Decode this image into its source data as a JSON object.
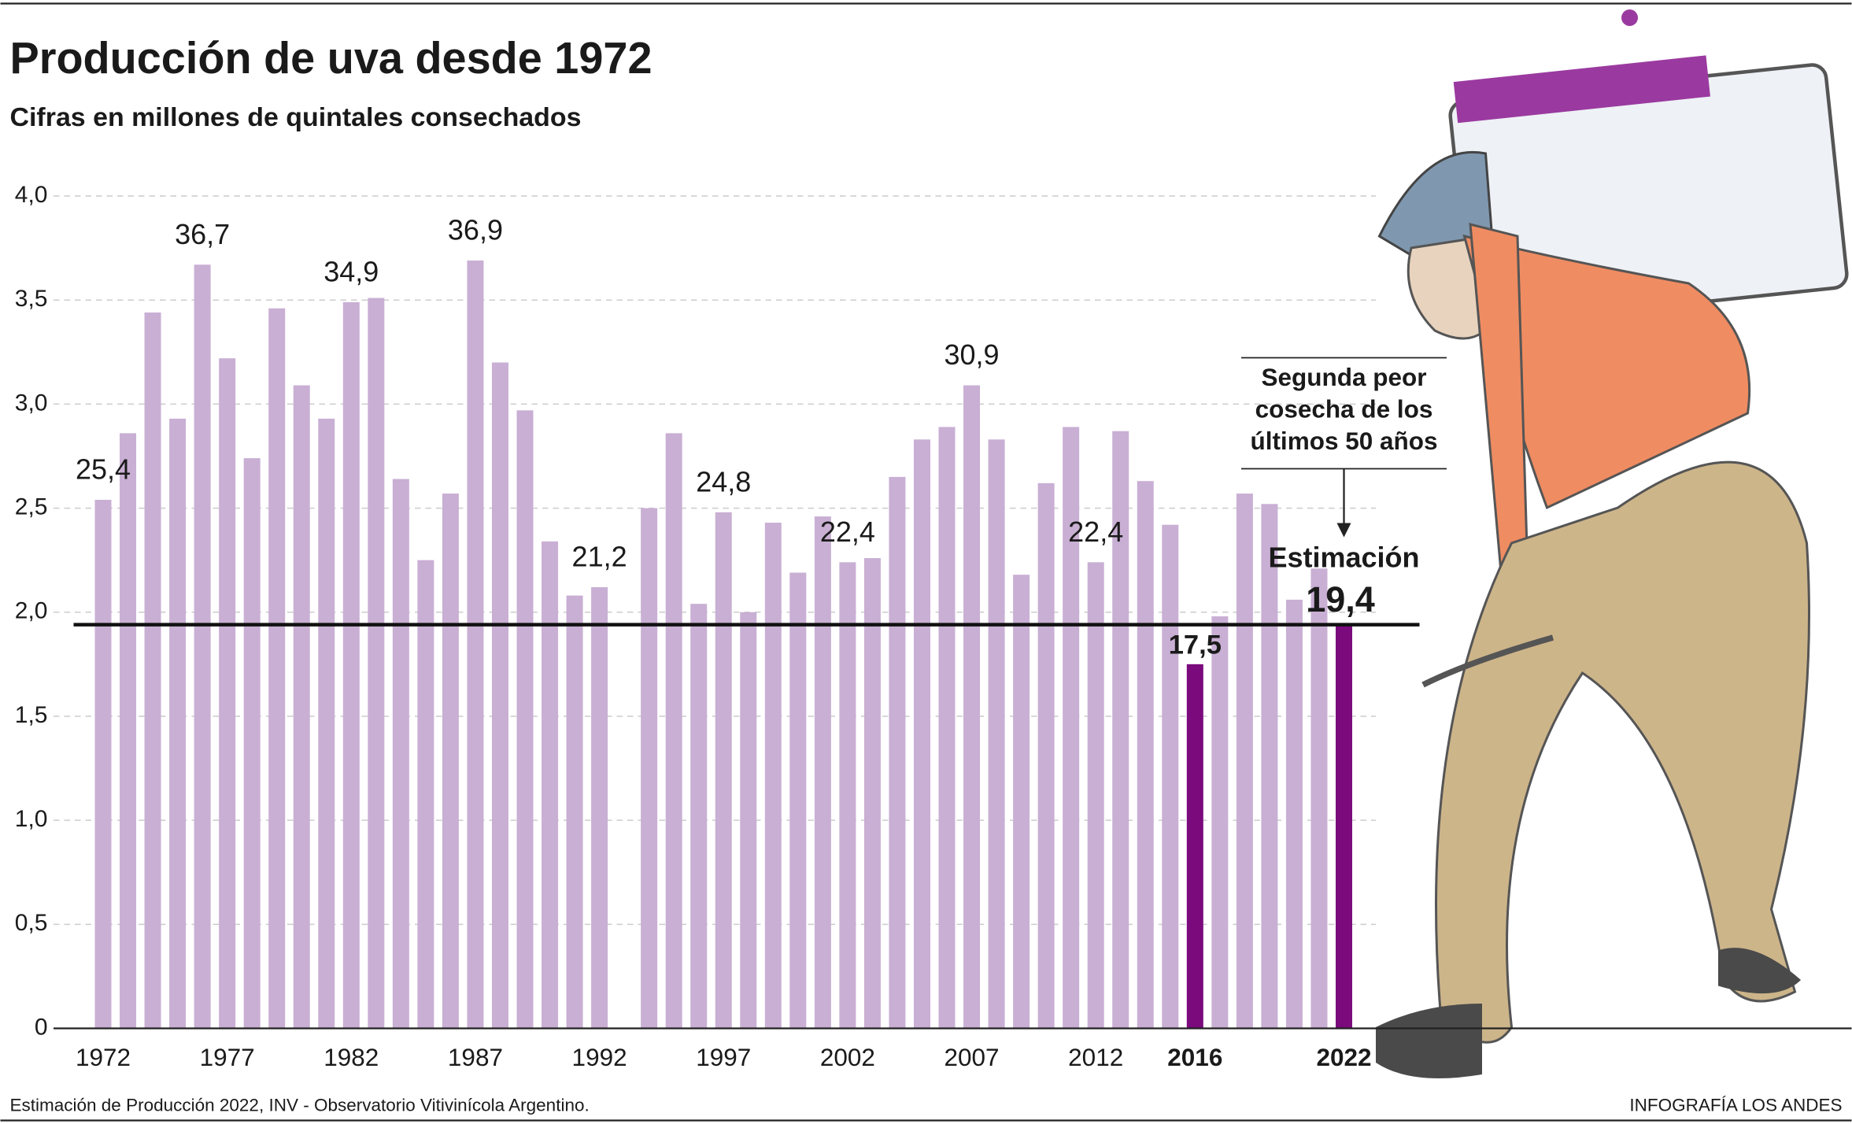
{
  "chart_data": {
    "type": "bar",
    "title": "Producción de uva desde 1972",
    "subtitle": "Cifras en millones de quintales consechados",
    "categories": [
      "1972",
      null,
      null,
      null,
      null,
      "1977",
      null,
      null,
      null,
      null,
      "1982",
      null,
      null,
      null,
      null,
      "1987",
      null,
      null,
      null,
      null,
      "1992",
      null,
      null,
      null,
      null,
      "1997",
      null,
      null,
      null,
      null,
      "2002",
      null,
      null,
      null,
      null,
      "2007",
      null,
      null,
      null,
      null,
      "2012",
      null,
      null,
      null,
      "2016",
      null,
      null,
      null,
      null,
      null,
      "2022"
    ],
    "values": [
      2.54,
      2.86,
      3.44,
      2.93,
      3.67,
      3.22,
      2.74,
      3.46,
      3.09,
      2.93,
      3.49,
      3.51,
      2.64,
      2.25,
      2.57,
      3.69,
      3.2,
      2.97,
      2.34,
      2.08,
      2.12,
      null,
      2.5,
      2.86,
      2.04,
      2.48,
      2.0,
      2.43,
      2.19,
      2.46,
      2.24,
      2.26,
      2.65,
      2.83,
      2.89,
      3.09,
      2.83,
      2.18,
      2.62,
      2.89,
      2.24,
      2.87,
      2.63,
      2.42,
      1.75,
      1.98,
      2.57,
      2.52,
      2.06,
      2.21,
      1.94
    ],
    "value_labels": [
      "25,4",
      null,
      null,
      null,
      "36,7",
      null,
      null,
      null,
      null,
      null,
      "34,9",
      null,
      null,
      null,
      null,
      "36,9",
      null,
      null,
      null,
      null,
      "21,2",
      null,
      null,
      null,
      null,
      "24,8",
      null,
      null,
      null,
      null,
      "22,4",
      null,
      null,
      null,
      null,
      "30,9",
      null,
      null,
      null,
      null,
      "22,4",
      null,
      null,
      null,
      "17,5",
      null,
      null,
      null,
      null,
      null,
      "19,4"
    ],
    "color": "#c9afd4",
    "highlight_categories": [
      "2016",
      "2022"
    ],
    "highlight_color": "#7b0a7d",
    "ylim": [
      0,
      4
    ],
    "yticks": [
      0,
      {
        "value": 0.5,
        "label": "0,5"
      },
      {
        "value": 1,
        "label": "1,0"
      },
      {
        "value": 1.5,
        "label": "1,5"
      },
      {
        "value": 2,
        "label": "2,0"
      },
      {
        "value": 2.5,
        "label": "2,5"
      },
      {
        "value": 3,
        "label": "3,0"
      },
      {
        "value": 3.5,
        "label": "3,5"
      },
      {
        "value": 4,
        "label": "4,0"
      }
    ],
    "grid": true,
    "annotation": [
      "Segunda peor",
      "cosecha de los",
      "últimos 50 años"
    ],
    "estimate_label": "Estimación",
    "source": "Estimación de Producción 2022, INV - Observatorio Vitivinícola Argentino.",
    "credit": "INFOGRAFÍA LOS ANDES"
  }
}
